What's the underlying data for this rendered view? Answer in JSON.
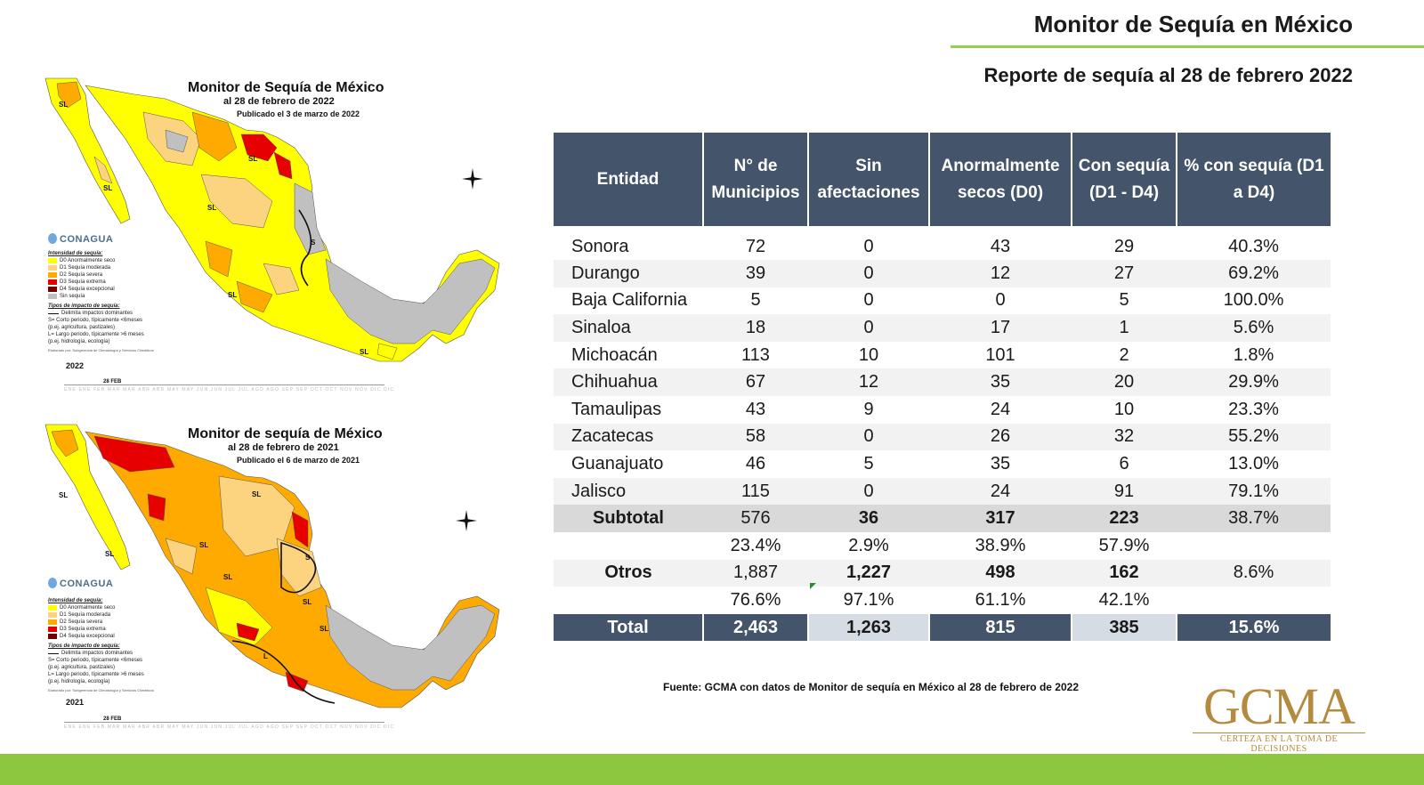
{
  "header": {
    "title": "Monitor de Sequía en México",
    "subtitle": "Reporte de sequía al 28 de febrero 2022"
  },
  "maps": {
    "top": {
      "title": "Monitor de Sequía de México",
      "date": "al 28 de febrero de 2022",
      "published": "Publicado el 3 de marzo de 2022",
      "year": "2022",
      "feb_label": "28 FEB"
    },
    "bottom": {
      "title": "Monitor de sequía de México",
      "date": "al 28 de febrero de 2021",
      "published": "Publicado el 6 de marzo de 2021",
      "year": "2021",
      "feb_label": "28 FEB"
    },
    "logo": "CONAGUA",
    "legend": {
      "heading": "Intensidad de sequía:",
      "d0": "D0 Anormalmente seco",
      "d1": "D1 Sequía moderada",
      "d2": "D2 Sequía severa",
      "d3": "D3 Sequía extrema",
      "d4": "D4 Sequía excepcional",
      "none": "Sin sequía",
      "impact_heading": "Tipos de impacto de sequía:",
      "impact_line": "Delimita impactos dominantes",
      "short": "S= Corto periodo, típicamente <6meses (p.ej. agricultura, pastizales)",
      "long": "L= Largo periodo, típicamente >6 meses (p.ej. hidrología, ecología)",
      "credit": "Elaborado por: Subgerencia de Climatología y Servicios Climáticos"
    },
    "months": "ENE ENE FEB MAR MAR ABR ABR MAY MAY JUN JUN JUL JUL AGO AGO SEP SEP OCT OCT NOV NOV DIC DIC",
    "colors": {
      "d0": "#ffff00",
      "d1": "#fcd37f",
      "d2": "#ffaa00",
      "d3": "#e60000",
      "d4": "#730000",
      "none": "#c0c0c0"
    }
  },
  "table": {
    "headers": [
      "Entidad",
      "N° de Municipios",
      "Sin afectaciones",
      "Anormalmente secos (D0)",
      "Con sequía (D1 - D4)",
      "% con sequía (D1 a D4)"
    ],
    "rows": [
      [
        "Sonora",
        "72",
        "0",
        "43",
        "29",
        "40.3%"
      ],
      [
        "Durango",
        "39",
        "0",
        "12",
        "27",
        "69.2%"
      ],
      [
        "Baja California",
        "5",
        "0",
        "0",
        "5",
        "100.0%"
      ],
      [
        "Sinaloa",
        "18",
        "0",
        "17",
        "1",
        "5.6%"
      ],
      [
        "Michoacán",
        "113",
        "10",
        "101",
        "2",
        "1.8%"
      ],
      [
        "Chihuahua",
        "67",
        "12",
        "35",
        "20",
        "29.9%"
      ],
      [
        "Tamaulipas",
        "43",
        "9",
        "24",
        "10",
        "23.3%"
      ],
      [
        "Zacatecas",
        "58",
        "0",
        "26",
        "32",
        "55.2%"
      ],
      [
        "Guanajuato",
        "46",
        "5",
        "35",
        "6",
        "13.0%"
      ],
      [
        "Jalisco",
        "115",
        "0",
        "24",
        "91",
        "79.1%"
      ]
    ],
    "subtotal": [
      "Subtotal",
      "576",
      "36",
      "317",
      "223",
      "38.7%"
    ],
    "subtotal_pct": [
      "",
      "23.4%",
      "2.9%",
      "38.9%",
      "57.9%",
      ""
    ],
    "otros": [
      "Otros",
      "1,887",
      "1,227",
      "498",
      "162",
      "8.6%"
    ],
    "otros_pct": [
      "",
      "76.6%",
      "97.1%",
      "61.1%",
      "42.1%",
      ""
    ],
    "total": [
      "Total",
      "2,463",
      "1,263",
      "815",
      "385",
      "15.6%"
    ]
  },
  "source": "Fuente: GCMA con datos de Monitor de sequía en México al 28 de febrero de 2022",
  "brand": {
    "name": "GCMA",
    "tagline": "CERTEZA EN LA TOMA DE DECISIONES"
  }
}
